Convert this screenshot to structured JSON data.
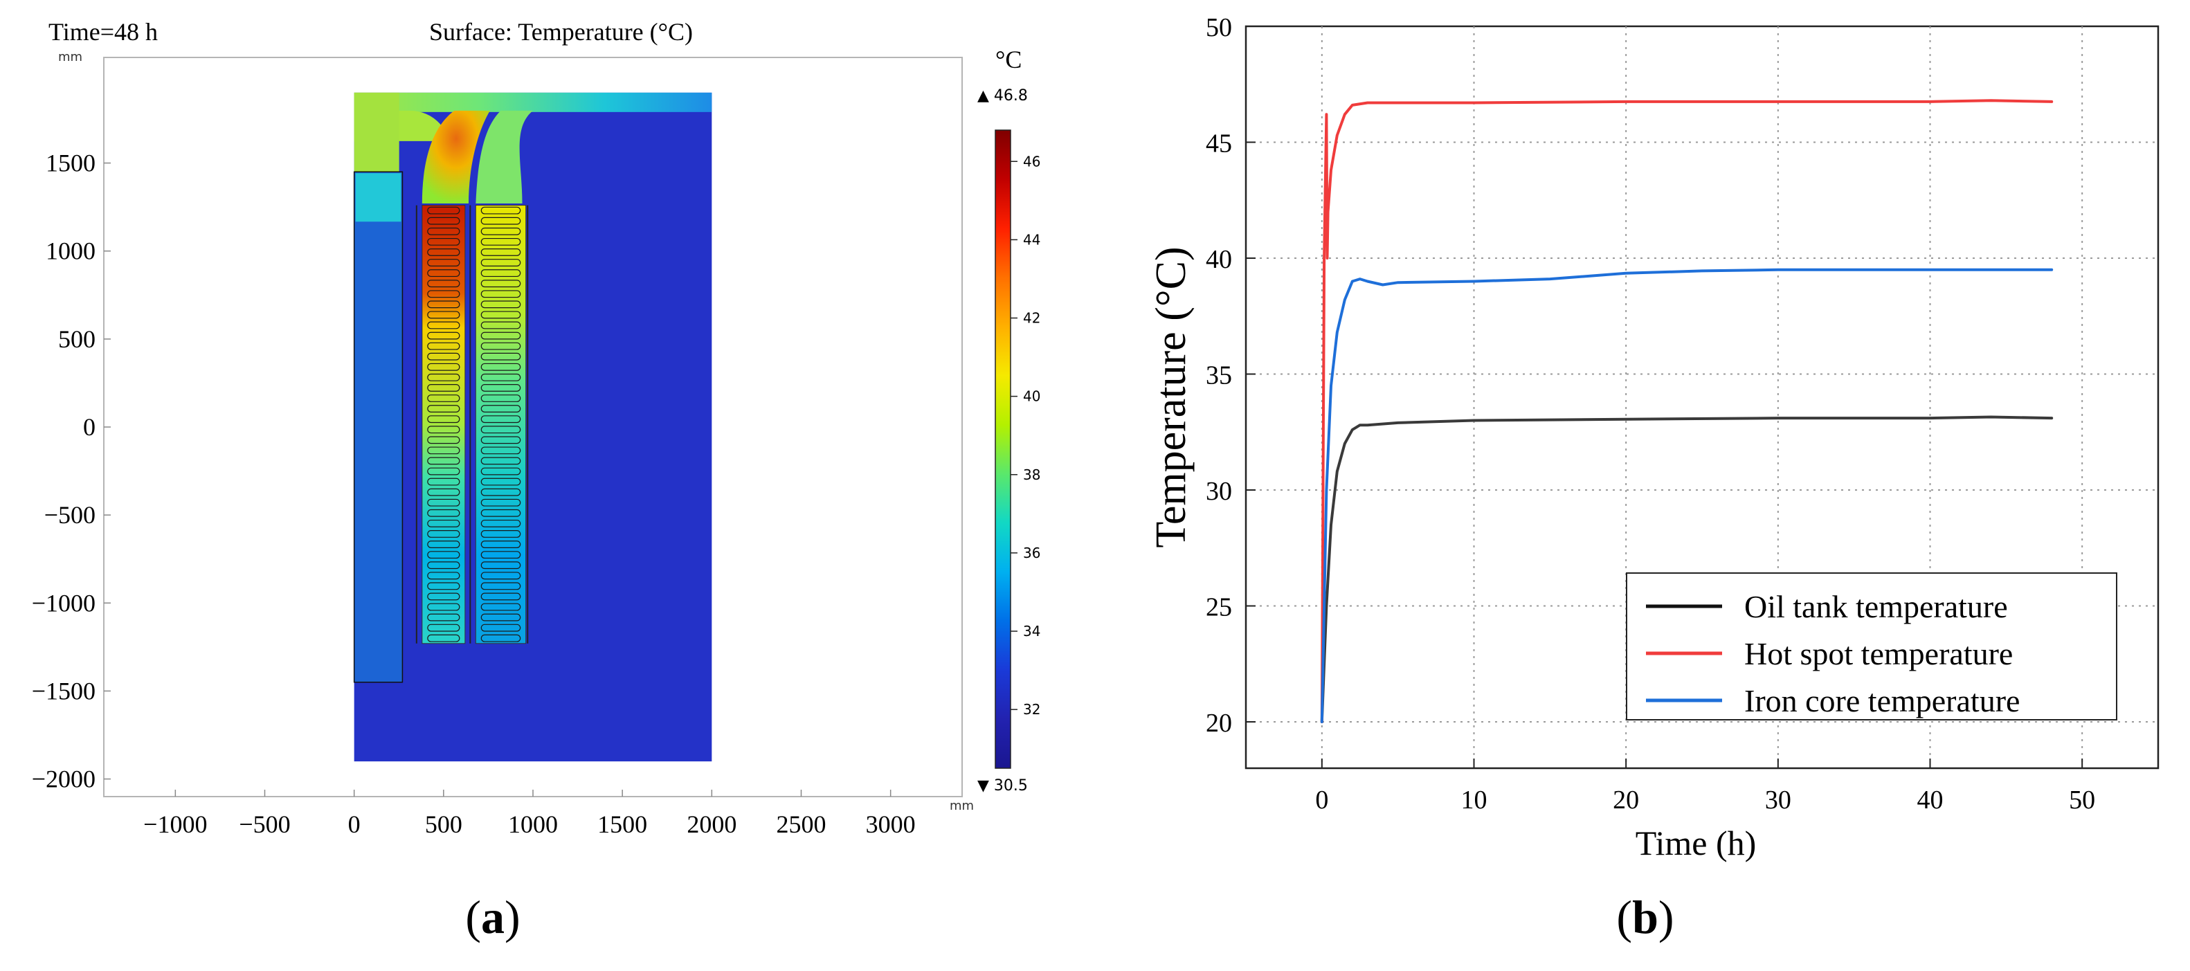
{
  "panel_a": {
    "label_open": "(",
    "label_letter": "a",
    "label_close": ")",
    "time_text": "Time=48 h",
    "surface_title": "Surface: Temperature (°C)",
    "axis_unit": "mm",
    "colorbar": {
      "unit": "°C",
      "max_label": "▲ 46.8",
      "min_label": "▼ 30.5",
      "max": 46.8,
      "min": 30.5,
      "ticks": [
        "46",
        "44",
        "42",
        "40",
        "38",
        "36",
        "34",
        "32"
      ],
      "colors": [
        "#800000",
        "#c00000",
        "#ff2000",
        "#ff7000",
        "#ffb000",
        "#f5ea00",
        "#b4f000",
        "#5be86a",
        "#12d8c4",
        "#00b0f0",
        "#0070e8",
        "#1a3ad8",
        "#2222b0",
        "#1a1690"
      ]
    }
  },
  "panel_b": {
    "label_open": "(",
    "label_letter": "b",
    "label_close": ")"
  },
  "chart_data": [
    {
      "type": "heatmap",
      "title": "Surface: Temperature (°C)",
      "xlabel": "",
      "ylabel": "",
      "x_unit": "mm",
      "y_unit": "mm",
      "xlim": [
        -1400,
        3400
      ],
      "ylim": [
        -2100,
        2100
      ],
      "x_ticks": [
        -1000,
        -500,
        0,
        500,
        1000,
        1500,
        2000,
        2500,
        3000
      ],
      "x_tick_labels": [
        "−1000",
        "−500",
        "0",
        "500",
        "1000",
        "1500",
        "2000",
        "2500",
        "3000"
      ],
      "y_ticks": [
        1500,
        1000,
        500,
        0,
        -500,
        -1000,
        -1500,
        -2000
      ],
      "y_tick_labels": [
        "1500",
        "1000",
        "500",
        "0",
        "−500",
        "−1000",
        "−1500",
        "−2000"
      ],
      "value_range": [
        30.5,
        46.8
      ],
      "domain": {
        "x": [
          0,
          2000
        ],
        "y": [
          -1900,
          1900
        ]
      },
      "core": {
        "x": [
          0,
          270
        ],
        "y": [
          -1450,
          1450
        ]
      },
      "winding_columns": [
        {
          "x": [
            380,
            620
          ],
          "y": [
            -1230,
            1260
          ]
        },
        {
          "x": [
            680,
            960
          ],
          "y": [
            -1230,
            1260
          ]
        }
      ],
      "background_temperature": 32.5
    },
    {
      "type": "line",
      "title": "",
      "xlabel": "Time (h)",
      "ylabel": "Temperature (°C)",
      "xlim": [
        -5,
        55
      ],
      "ylim": [
        18,
        50
      ],
      "x_ticks": [
        0,
        10,
        20,
        30,
        40,
        50
      ],
      "y_ticks": [
        20,
        25,
        30,
        35,
        40,
        45,
        50
      ],
      "grid": true,
      "legend": "bottom-right",
      "series": [
        {
          "name": "Oil tank temperature",
          "color": "#3a3a3a",
          "x": [
            0,
            0.3,
            0.6,
            1.0,
            1.5,
            2.0,
            2.5,
            3,
            5,
            10,
            20,
            30,
            40,
            44,
            48
          ],
          "y": [
            20,
            25,
            28.5,
            30.8,
            32.0,
            32.6,
            32.8,
            32.8,
            32.9,
            33.0,
            33.05,
            33.1,
            33.1,
            33.15,
            33.1
          ]
        },
        {
          "name": "Hot spot temperature",
          "color": "#f03c3c",
          "x": [
            0,
            0.15,
            0.3,
            0.35,
            0.4,
            0.6,
            1.0,
            1.5,
            2.0,
            3,
            5,
            10,
            20,
            30,
            40,
            44,
            48
          ],
          "y": [
            20,
            40,
            46.2,
            40,
            42,
            43.8,
            45.3,
            46.2,
            46.6,
            46.7,
            46.7,
            46.7,
            46.75,
            46.75,
            46.75,
            46.8,
            46.75
          ]
        },
        {
          "name": "Iron core temperature",
          "color": "#1e6fd9",
          "x": [
            0,
            0.3,
            0.6,
            1.0,
            1.5,
            2.0,
            2.5,
            3,
            4,
            5,
            10,
            15,
            20,
            25,
            30,
            40,
            48
          ],
          "y": [
            20,
            30,
            34.5,
            36.8,
            38.2,
            39.0,
            39.1,
            39.0,
            38.85,
            38.95,
            39.0,
            39.1,
            39.35,
            39.45,
            39.5,
            39.5,
            39.5
          ]
        }
      ]
    }
  ]
}
